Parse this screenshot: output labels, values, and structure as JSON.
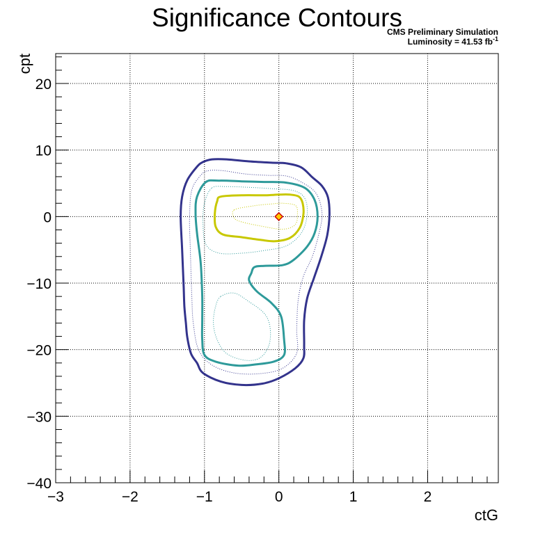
{
  "chart_data": {
    "type": "contour",
    "title": "Significance Contours",
    "annotations": {
      "line1": "CMS Preliminary Simulation",
      "line2_prefix": "Luminosity = 41.53 fb",
      "line2_sup": "-1"
    },
    "xlabel": "ctG",
    "ylabel": "cpt",
    "xlim": [
      -3,
      2.95
    ],
    "ylim": [
      -40,
      24.5
    ],
    "x_ticks": [
      -3,
      -2,
      -1,
      0,
      1,
      2
    ],
    "x_tick_labels": [
      "−3",
      "−2",
      "−1",
      "0",
      "1",
      "2"
    ],
    "y_ticks": [
      -40,
      -30,
      -20,
      -10,
      0,
      10,
      20
    ],
    "y_tick_labels": [
      "−40",
      "−30",
      "−20",
      "−10",
      "0",
      "10",
      "20"
    ],
    "grid": true,
    "best_fit_point": {
      "x": 0,
      "y": 0,
      "fill": "#ffcc00",
      "stroke": "#cc0000"
    },
    "contours": [
      {
        "style": "solid",
        "color": "#33338c",
        "width": 3,
        "points": [
          [
            -1.02,
            8.2
          ],
          [
            -0.9,
            8.6
          ],
          [
            -0.7,
            8.6
          ],
          [
            -0.4,
            8.3
          ],
          [
            -0.1,
            8.1
          ],
          [
            0.1,
            8
          ],
          [
            0.3,
            7.4
          ],
          [
            0.45,
            5.9
          ],
          [
            0.58,
            4.6
          ],
          [
            0.66,
            2.9
          ],
          [
            0.68,
            0.3
          ],
          [
            0.65,
            -2.8
          ],
          [
            0.57,
            -6
          ],
          [
            0.47,
            -9.3
          ],
          [
            0.38,
            -12.3
          ],
          [
            0.34,
            -15.6
          ],
          [
            0.34,
            -19.3
          ],
          [
            0.33,
            -21.3
          ],
          [
            0.22,
            -22.8
          ],
          [
            0,
            -24.3
          ],
          [
            -0.22,
            -25.1
          ],
          [
            -0.5,
            -25.3
          ],
          [
            -0.78,
            -24.8
          ],
          [
            -1.02,
            -23.5
          ],
          [
            -1.1,
            -22
          ],
          [
            -1.18,
            -20.6
          ],
          [
            -1.23,
            -18.2
          ],
          [
            -1.25,
            -16
          ],
          [
            -1.27,
            -13.5
          ],
          [
            -1.28,
            -10.5
          ],
          [
            -1.3,
            -5
          ],
          [
            -1.32,
            0
          ],
          [
            -1.3,
            3
          ],
          [
            -1.23,
            5.5
          ],
          [
            -1.1,
            7.5
          ],
          [
            -1.02,
            8.2
          ]
        ]
      },
      {
        "style": "dotted",
        "color": "#33338c",
        "width": 1,
        "points": [
          [
            -0.95,
            6.9
          ],
          [
            -0.75,
            6.9
          ],
          [
            -0.45,
            6.4
          ],
          [
            -0.15,
            6.2
          ],
          [
            0.1,
            6.1
          ],
          [
            0.3,
            5.2
          ],
          [
            0.5,
            3.5
          ],
          [
            0.58,
            0.5
          ],
          [
            0.54,
            -2.5
          ],
          [
            0.45,
            -6
          ],
          [
            0.33,
            -9
          ],
          [
            0.26,
            -12.5
          ],
          [
            0.24,
            -17
          ],
          [
            0.24,
            -20.5
          ],
          [
            0.05,
            -22.8
          ],
          [
            -0.25,
            -23.6
          ],
          [
            -0.6,
            -23.5
          ],
          [
            -0.9,
            -22.3
          ],
          [
            -1.08,
            -20
          ],
          [
            -1.15,
            -16
          ],
          [
            -1.17,
            -12
          ],
          [
            -1.19,
            -5
          ],
          [
            -1.2,
            0
          ],
          [
            -1.17,
            4
          ],
          [
            -1.05,
            6.2
          ],
          [
            -0.95,
            6.9
          ]
        ]
      },
      {
        "style": "solid",
        "color": "#2e9a9a",
        "width": 3,
        "points": [
          [
            -0.98,
            5.2
          ],
          [
            -0.8,
            5.4
          ],
          [
            -0.5,
            5.3
          ],
          [
            -0.2,
            5.2
          ],
          [
            0.1,
            5.1
          ],
          [
            0.35,
            4.3
          ],
          [
            0.48,
            2.5
          ],
          [
            0.52,
            0
          ],
          [
            0.48,
            -2.5
          ],
          [
            0.38,
            -4.5
          ],
          [
            0.2,
            -6.5
          ],
          [
            0.05,
            -7.3
          ],
          [
            -0.2,
            -7.4
          ],
          [
            -0.33,
            -7.6
          ],
          [
            -0.37,
            -8.5
          ],
          [
            -0.4,
            -9.6
          ],
          [
            -0.3,
            -11.2
          ],
          [
            -0.1,
            -13
          ],
          [
            0.03,
            -15
          ],
          [
            0.07,
            -18.5
          ],
          [
            0.07,
            -20.8
          ],
          [
            -0.07,
            -21.8
          ],
          [
            -0.3,
            -22.2
          ],
          [
            -0.55,
            -22.4
          ],
          [
            -0.85,
            -21.8
          ],
          [
            -1.0,
            -20.8
          ],
          [
            -1.03,
            -18.5
          ],
          [
            -1.03,
            -15.5
          ],
          [
            -1.03,
            -12
          ],
          [
            -1.05,
            -7
          ],
          [
            -1.1,
            -2.5
          ],
          [
            -1.12,
            0.5
          ],
          [
            -1.1,
            3
          ],
          [
            -0.98,
            5.2
          ]
        ]
      },
      {
        "style": "dotted",
        "color": "#2e9a9a",
        "width": 1,
        "points": [
          [
            -0.9,
            4.3
          ],
          [
            -0.7,
            4.5
          ],
          [
            -0.4,
            4.4
          ],
          [
            -0.1,
            4.2
          ],
          [
            0.2,
            3.9
          ],
          [
            0.35,
            2.7
          ],
          [
            0.38,
            0.2
          ],
          [
            0.3,
            -2.5
          ],
          [
            0.1,
            -4.4
          ],
          [
            -0.2,
            -5.1
          ],
          [
            -0.5,
            -5.5
          ],
          [
            -0.8,
            -5.5
          ],
          [
            -0.98,
            -4.2
          ],
          [
            -1.02,
            -1
          ],
          [
            -1.0,
            2
          ],
          [
            -0.9,
            4.3
          ]
        ]
      },
      {
        "style": "dotted",
        "color": "#2e9a9a",
        "width": 1,
        "points": [
          [
            -0.78,
            -12
          ],
          [
            -0.6,
            -11.5
          ],
          [
            -0.4,
            -12.8
          ],
          [
            -0.2,
            -14.5
          ],
          [
            -0.12,
            -16.5
          ],
          [
            -0.13,
            -19.2
          ],
          [
            -0.25,
            -21.2
          ],
          [
            -0.45,
            -21.6
          ],
          [
            -0.7,
            -20.6
          ],
          [
            -0.83,
            -18.5
          ],
          [
            -0.88,
            -16
          ],
          [
            -0.85,
            -13.5
          ],
          [
            -0.78,
            -12
          ]
        ]
      },
      {
        "style": "solid",
        "color": "#c8c800",
        "width": 3,
        "points": [
          [
            -0.78,
            3
          ],
          [
            -0.5,
            3.2
          ],
          [
            -0.2,
            3.2
          ],
          [
            0,
            3.3
          ],
          [
            0.15,
            3.3
          ],
          [
            0.27,
            3
          ],
          [
            0.32,
            2
          ],
          [
            0.33,
            0.3
          ],
          [
            0.28,
            -1.7
          ],
          [
            0.15,
            -3.2
          ],
          [
            -0.05,
            -3.7
          ],
          [
            -0.25,
            -3.5
          ],
          [
            -0.5,
            -3.1
          ],
          [
            -0.75,
            -2.7
          ],
          [
            -0.85,
            -1.5
          ],
          [
            -0.86,
            0.5
          ],
          [
            -0.83,
            2.3
          ],
          [
            -0.78,
            3
          ]
        ]
      },
      {
        "style": "dotted",
        "color": "#c8c800",
        "width": 1,
        "points": [
          [
            -0.6,
            1
          ],
          [
            -0.35,
            1.6
          ],
          [
            -0.1,
            1.9
          ],
          [
            0.05,
            2
          ],
          [
            0.22,
            1.7
          ],
          [
            0.25,
            0.5
          ],
          [
            0.22,
            -1.2
          ],
          [
            0.05,
            -1.9
          ],
          [
            -0.25,
            -1.4
          ],
          [
            -0.5,
            -0.8
          ],
          [
            -0.6,
            -0.2
          ],
          [
            -0.6,
            1
          ]
        ]
      }
    ]
  }
}
